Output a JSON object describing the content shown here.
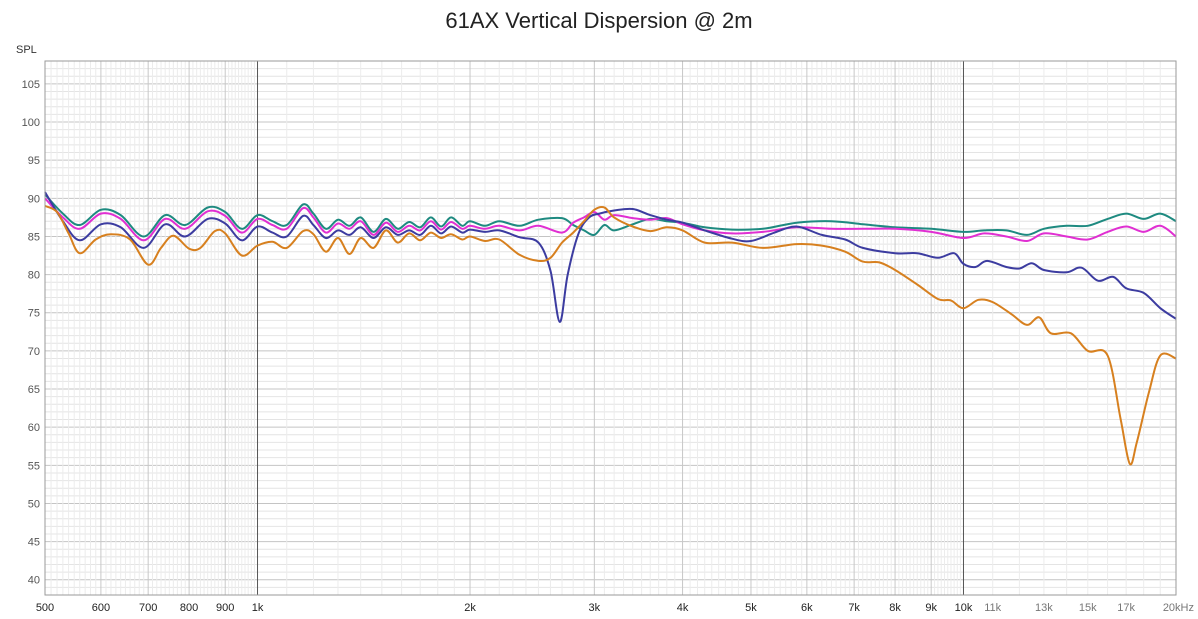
{
  "chart_data": {
    "type": "line",
    "title": "61AX Vertical Dispersion @ 2m",
    "ylabel": "SPL",
    "xlabel": "",
    "xscale": "log",
    "xlim": [
      500,
      20000
    ],
    "ylim": [
      38,
      108
    ],
    "grid": true,
    "x_major_ticks": [
      {
        "v": 500,
        "label": "500"
      },
      {
        "v": 600,
        "label": "600"
      },
      {
        "v": 700,
        "label": "700"
      },
      {
        "v": 800,
        "label": "800"
      },
      {
        "v": 900,
        "label": "900"
      },
      {
        "v": 1000,
        "label": "1k"
      },
      {
        "v": 2000,
        "label": "2k"
      },
      {
        "v": 3000,
        "label": "3k"
      },
      {
        "v": 4000,
        "label": "4k"
      },
      {
        "v": 5000,
        "label": "5k"
      },
      {
        "v": 6000,
        "label": "6k"
      },
      {
        "v": 7000,
        "label": "7k"
      },
      {
        "v": 8000,
        "label": "8k"
      },
      {
        "v": 9000,
        "label": "9k"
      },
      {
        "v": 10000,
        "label": "10k"
      }
    ],
    "x_minor_ticks": [
      {
        "v": 11000,
        "label": "11k"
      },
      {
        "v": 13000,
        "label": "13k"
      },
      {
        "v": 15000,
        "label": "15k"
      },
      {
        "v": 17000,
        "label": "17k"
      },
      {
        "v": 20000,
        "label": "20kHz"
      }
    ],
    "y_ticks": [
      40,
      45,
      50,
      55,
      60,
      65,
      70,
      75,
      80,
      85,
      90,
      95,
      100,
      105
    ],
    "series": [
      {
        "color": "#1e8a80",
        "points": [
          [
            500,
            90.5
          ],
          [
            530,
            88
          ],
          [
            560,
            86.5
          ],
          [
            600,
            88.5
          ],
          [
            640,
            87.8
          ],
          [
            690,
            85
          ],
          [
            740,
            87.8
          ],
          [
            790,
            86.5
          ],
          [
            850,
            88.8
          ],
          [
            900,
            88.2
          ],
          [
            950,
            86
          ],
          [
            1000,
            87.8
          ],
          [
            1050,
            87
          ],
          [
            1100,
            86.5
          ],
          [
            1160,
            89.2
          ],
          [
            1200,
            88
          ],
          [
            1250,
            86
          ],
          [
            1300,
            87.2
          ],
          [
            1350,
            86.4
          ],
          [
            1400,
            87.5
          ],
          [
            1460,
            85.6
          ],
          [
            1520,
            87.3
          ],
          [
            1580,
            86
          ],
          [
            1640,
            86.9
          ],
          [
            1700,
            86.2
          ],
          [
            1760,
            87.5
          ],
          [
            1820,
            86.3
          ],
          [
            1880,
            87.5
          ],
          [
            1950,
            86.4
          ],
          [
            2000,
            87
          ],
          [
            2100,
            86.4
          ],
          [
            2200,
            87
          ],
          [
            2350,
            86.4
          ],
          [
            2500,
            87.2
          ],
          [
            2700,
            87.4
          ],
          [
            2800,
            86.5
          ],
          [
            2900,
            85.8
          ],
          [
            3000,
            85.2
          ],
          [
            3100,
            86.5
          ],
          [
            3200,
            85.8
          ],
          [
            3400,
            86.6
          ],
          [
            3600,
            87.3
          ],
          [
            3800,
            87
          ],
          [
            4000,
            86.8
          ],
          [
            4300,
            86.2
          ],
          [
            4700,
            85.9
          ],
          [
            5200,
            86
          ],
          [
            5800,
            86.8
          ],
          [
            6500,
            87
          ],
          [
            7200,
            86.6
          ],
          [
            8000,
            86.2
          ],
          [
            9000,
            86
          ],
          [
            10000,
            85.6
          ],
          [
            10700,
            85.8
          ],
          [
            11500,
            85.8
          ],
          [
            12300,
            85.2
          ],
          [
            13000,
            86
          ],
          [
            14000,
            86.4
          ],
          [
            15000,
            86.4
          ],
          [
            16000,
            87.3
          ],
          [
            17000,
            88
          ],
          [
            18000,
            87.3
          ],
          [
            19000,
            88
          ],
          [
            20000,
            87
          ]
        ]
      },
      {
        "color": "#e02fd2",
        "points": [
          [
            500,
            90
          ],
          [
            530,
            87.5
          ],
          [
            560,
            86
          ],
          [
            600,
            88
          ],
          [
            640,
            87.3
          ],
          [
            690,
            84.5
          ],
          [
            740,
            87.3
          ],
          [
            790,
            86
          ],
          [
            850,
            88.3
          ],
          [
            900,
            87.7
          ],
          [
            950,
            85.5
          ],
          [
            1000,
            87.3
          ],
          [
            1050,
            86.5
          ],
          [
            1100,
            86
          ],
          [
            1160,
            88.7
          ],
          [
            1200,
            87.5
          ],
          [
            1250,
            85.5
          ],
          [
            1300,
            86.7
          ],
          [
            1350,
            86
          ],
          [
            1400,
            87
          ],
          [
            1460,
            85.2
          ],
          [
            1520,
            86.8
          ],
          [
            1580,
            85.6
          ],
          [
            1640,
            86.4
          ],
          [
            1700,
            85.8
          ],
          [
            1760,
            87
          ],
          [
            1820,
            85.9
          ],
          [
            1880,
            86.9
          ],
          [
            1950,
            86
          ],
          [
            2000,
            86.4
          ],
          [
            2100,
            86
          ],
          [
            2200,
            86.4
          ],
          [
            2350,
            85.8
          ],
          [
            2500,
            86.4
          ],
          [
            2700,
            85.5
          ],
          [
            2800,
            86.8
          ],
          [
            2900,
            87.5
          ],
          [
            3000,
            88.2
          ],
          [
            3100,
            87.2
          ],
          [
            3200,
            87.8
          ],
          [
            3400,
            87.4
          ],
          [
            3600,
            87.2
          ],
          [
            3800,
            87.4
          ],
          [
            4000,
            86.6
          ],
          [
            4300,
            85.8
          ],
          [
            4700,
            85.4
          ],
          [
            5200,
            85.6
          ],
          [
            5800,
            86.2
          ],
          [
            6500,
            86
          ],
          [
            7200,
            86
          ],
          [
            8000,
            86
          ],
          [
            9000,
            85.6
          ],
          [
            10000,
            84.8
          ],
          [
            10700,
            85.4
          ],
          [
            11500,
            85
          ],
          [
            12300,
            84.4
          ],
          [
            13000,
            85.4
          ],
          [
            14000,
            85
          ],
          [
            15000,
            84.6
          ],
          [
            16000,
            85.6
          ],
          [
            17000,
            86.3
          ],
          [
            18000,
            85.6
          ],
          [
            19000,
            86.4
          ],
          [
            20000,
            85
          ]
        ]
      },
      {
        "color": "#3c3ca0",
        "points": [
          [
            500,
            90.8
          ],
          [
            530,
            87
          ],
          [
            560,
            84.5
          ],
          [
            600,
            86.6
          ],
          [
            640,
            86.2
          ],
          [
            690,
            83.5
          ],
          [
            740,
            86.6
          ],
          [
            790,
            85
          ],
          [
            850,
            87.3
          ],
          [
            900,
            86.7
          ],
          [
            950,
            84.5
          ],
          [
            1000,
            86.3
          ],
          [
            1050,
            85.5
          ],
          [
            1100,
            85
          ],
          [
            1160,
            87.7
          ],
          [
            1200,
            86.5
          ],
          [
            1250,
            84.8
          ],
          [
            1300,
            85.8
          ],
          [
            1350,
            85.2
          ],
          [
            1400,
            86.2
          ],
          [
            1460,
            84.8
          ],
          [
            1520,
            86.2
          ],
          [
            1580,
            85.2
          ],
          [
            1640,
            85.8
          ],
          [
            1700,
            85.2
          ],
          [
            1760,
            86.4
          ],
          [
            1820,
            85.4
          ],
          [
            1880,
            86.3
          ],
          [
            1950,
            85.5
          ],
          [
            2000,
            85.9
          ],
          [
            2100,
            85.6
          ],
          [
            2200,
            85.8
          ],
          [
            2350,
            84.9
          ],
          [
            2500,
            84.2
          ],
          [
            2600,
            80.5
          ],
          [
            2680,
            73.8
          ],
          [
            2750,
            80
          ],
          [
            2850,
            85.4
          ],
          [
            2950,
            87.5
          ],
          [
            3050,
            88
          ],
          [
            3200,
            88.4
          ],
          [
            3400,
            88.6
          ],
          [
            3600,
            87.8
          ],
          [
            3800,
            87.2
          ],
          [
            4000,
            86.8
          ],
          [
            4300,
            85.8
          ],
          [
            4700,
            84.7
          ],
          [
            5000,
            84.4
          ],
          [
            5400,
            85.5
          ],
          [
            5800,
            86.3
          ],
          [
            6300,
            85.2
          ],
          [
            6800,
            84.6
          ],
          [
            7200,
            83.5
          ],
          [
            8000,
            82.8
          ],
          [
            8600,
            82.8
          ],
          [
            9200,
            82.2
          ],
          [
            9700,
            82.8
          ],
          [
            10000,
            81.4
          ],
          [
            10400,
            81
          ],
          [
            10800,
            81.8
          ],
          [
            11500,
            81
          ],
          [
            12000,
            80.8
          ],
          [
            12500,
            81.5
          ],
          [
            13000,
            80.6
          ],
          [
            14000,
            80.3
          ],
          [
            14700,
            80.9
          ],
          [
            15500,
            79.2
          ],
          [
            16300,
            79.7
          ],
          [
            17000,
            78.2
          ],
          [
            18000,
            77.6
          ],
          [
            19000,
            75.6
          ],
          [
            20000,
            74.2
          ]
        ]
      },
      {
        "color": "#d7801f",
        "points": [
          [
            500,
            89
          ],
          [
            520,
            88.2
          ],
          [
            540,
            85.4
          ],
          [
            560,
            82.8
          ],
          [
            590,
            84.6
          ],
          [
            620,
            85.3
          ],
          [
            660,
            84.6
          ],
          [
            700,
            81.3
          ],
          [
            730,
            83.5
          ],
          [
            760,
            85.1
          ],
          [
            800,
            83.4
          ],
          [
            830,
            83.5
          ],
          [
            870,
            85.7
          ],
          [
            900,
            85.4
          ],
          [
            950,
            82.5
          ],
          [
            1000,
            83.8
          ],
          [
            1050,
            84.3
          ],
          [
            1100,
            83.5
          ],
          [
            1160,
            85.7
          ],
          [
            1200,
            85.3
          ],
          [
            1250,
            83
          ],
          [
            1300,
            84.8
          ],
          [
            1350,
            82.7
          ],
          [
            1400,
            84.8
          ],
          [
            1460,
            83.5
          ],
          [
            1520,
            85.8
          ],
          [
            1580,
            84.2
          ],
          [
            1640,
            85.4
          ],
          [
            1700,
            84.5
          ],
          [
            1760,
            85.5
          ],
          [
            1820,
            84.8
          ],
          [
            1880,
            85.3
          ],
          [
            1950,
            84.6
          ],
          [
            2000,
            85
          ],
          [
            2100,
            84.4
          ],
          [
            2200,
            84.6
          ],
          [
            2350,
            82.6
          ],
          [
            2500,
            81.8
          ],
          [
            2600,
            82.2
          ],
          [
            2700,
            84.2
          ],
          [
            2800,
            85.5
          ],
          [
            2900,
            87
          ],
          [
            3000,
            88.5
          ],
          [
            3100,
            88.8
          ],
          [
            3200,
            87.5
          ],
          [
            3400,
            86.3
          ],
          [
            3600,
            85.7
          ],
          [
            3800,
            86.2
          ],
          [
            4000,
            85.8
          ],
          [
            4300,
            84.2
          ],
          [
            4700,
            84.2
          ],
          [
            5200,
            83.5
          ],
          [
            5800,
            84
          ],
          [
            6300,
            83.8
          ],
          [
            6800,
            83
          ],
          [
            7200,
            81.7
          ],
          [
            7600,
            81.6
          ],
          [
            8000,
            80.6
          ],
          [
            8600,
            78.7
          ],
          [
            9200,
            76.8
          ],
          [
            9600,
            76.6
          ],
          [
            10000,
            75.6
          ],
          [
            10500,
            76.7
          ],
          [
            11000,
            76.4
          ],
          [
            11700,
            74.8
          ],
          [
            12300,
            73.4
          ],
          [
            12800,
            74.4
          ],
          [
            13300,
            72.3
          ],
          [
            14200,
            72.3
          ],
          [
            15000,
            70
          ],
          [
            16000,
            69.4
          ],
          [
            16700,
            61
          ],
          [
            17200,
            55.2
          ],
          [
            17600,
            58
          ],
          [
            18300,
            64.5
          ],
          [
            19000,
            69.4
          ],
          [
            20000,
            69
          ]
        ]
      }
    ]
  }
}
